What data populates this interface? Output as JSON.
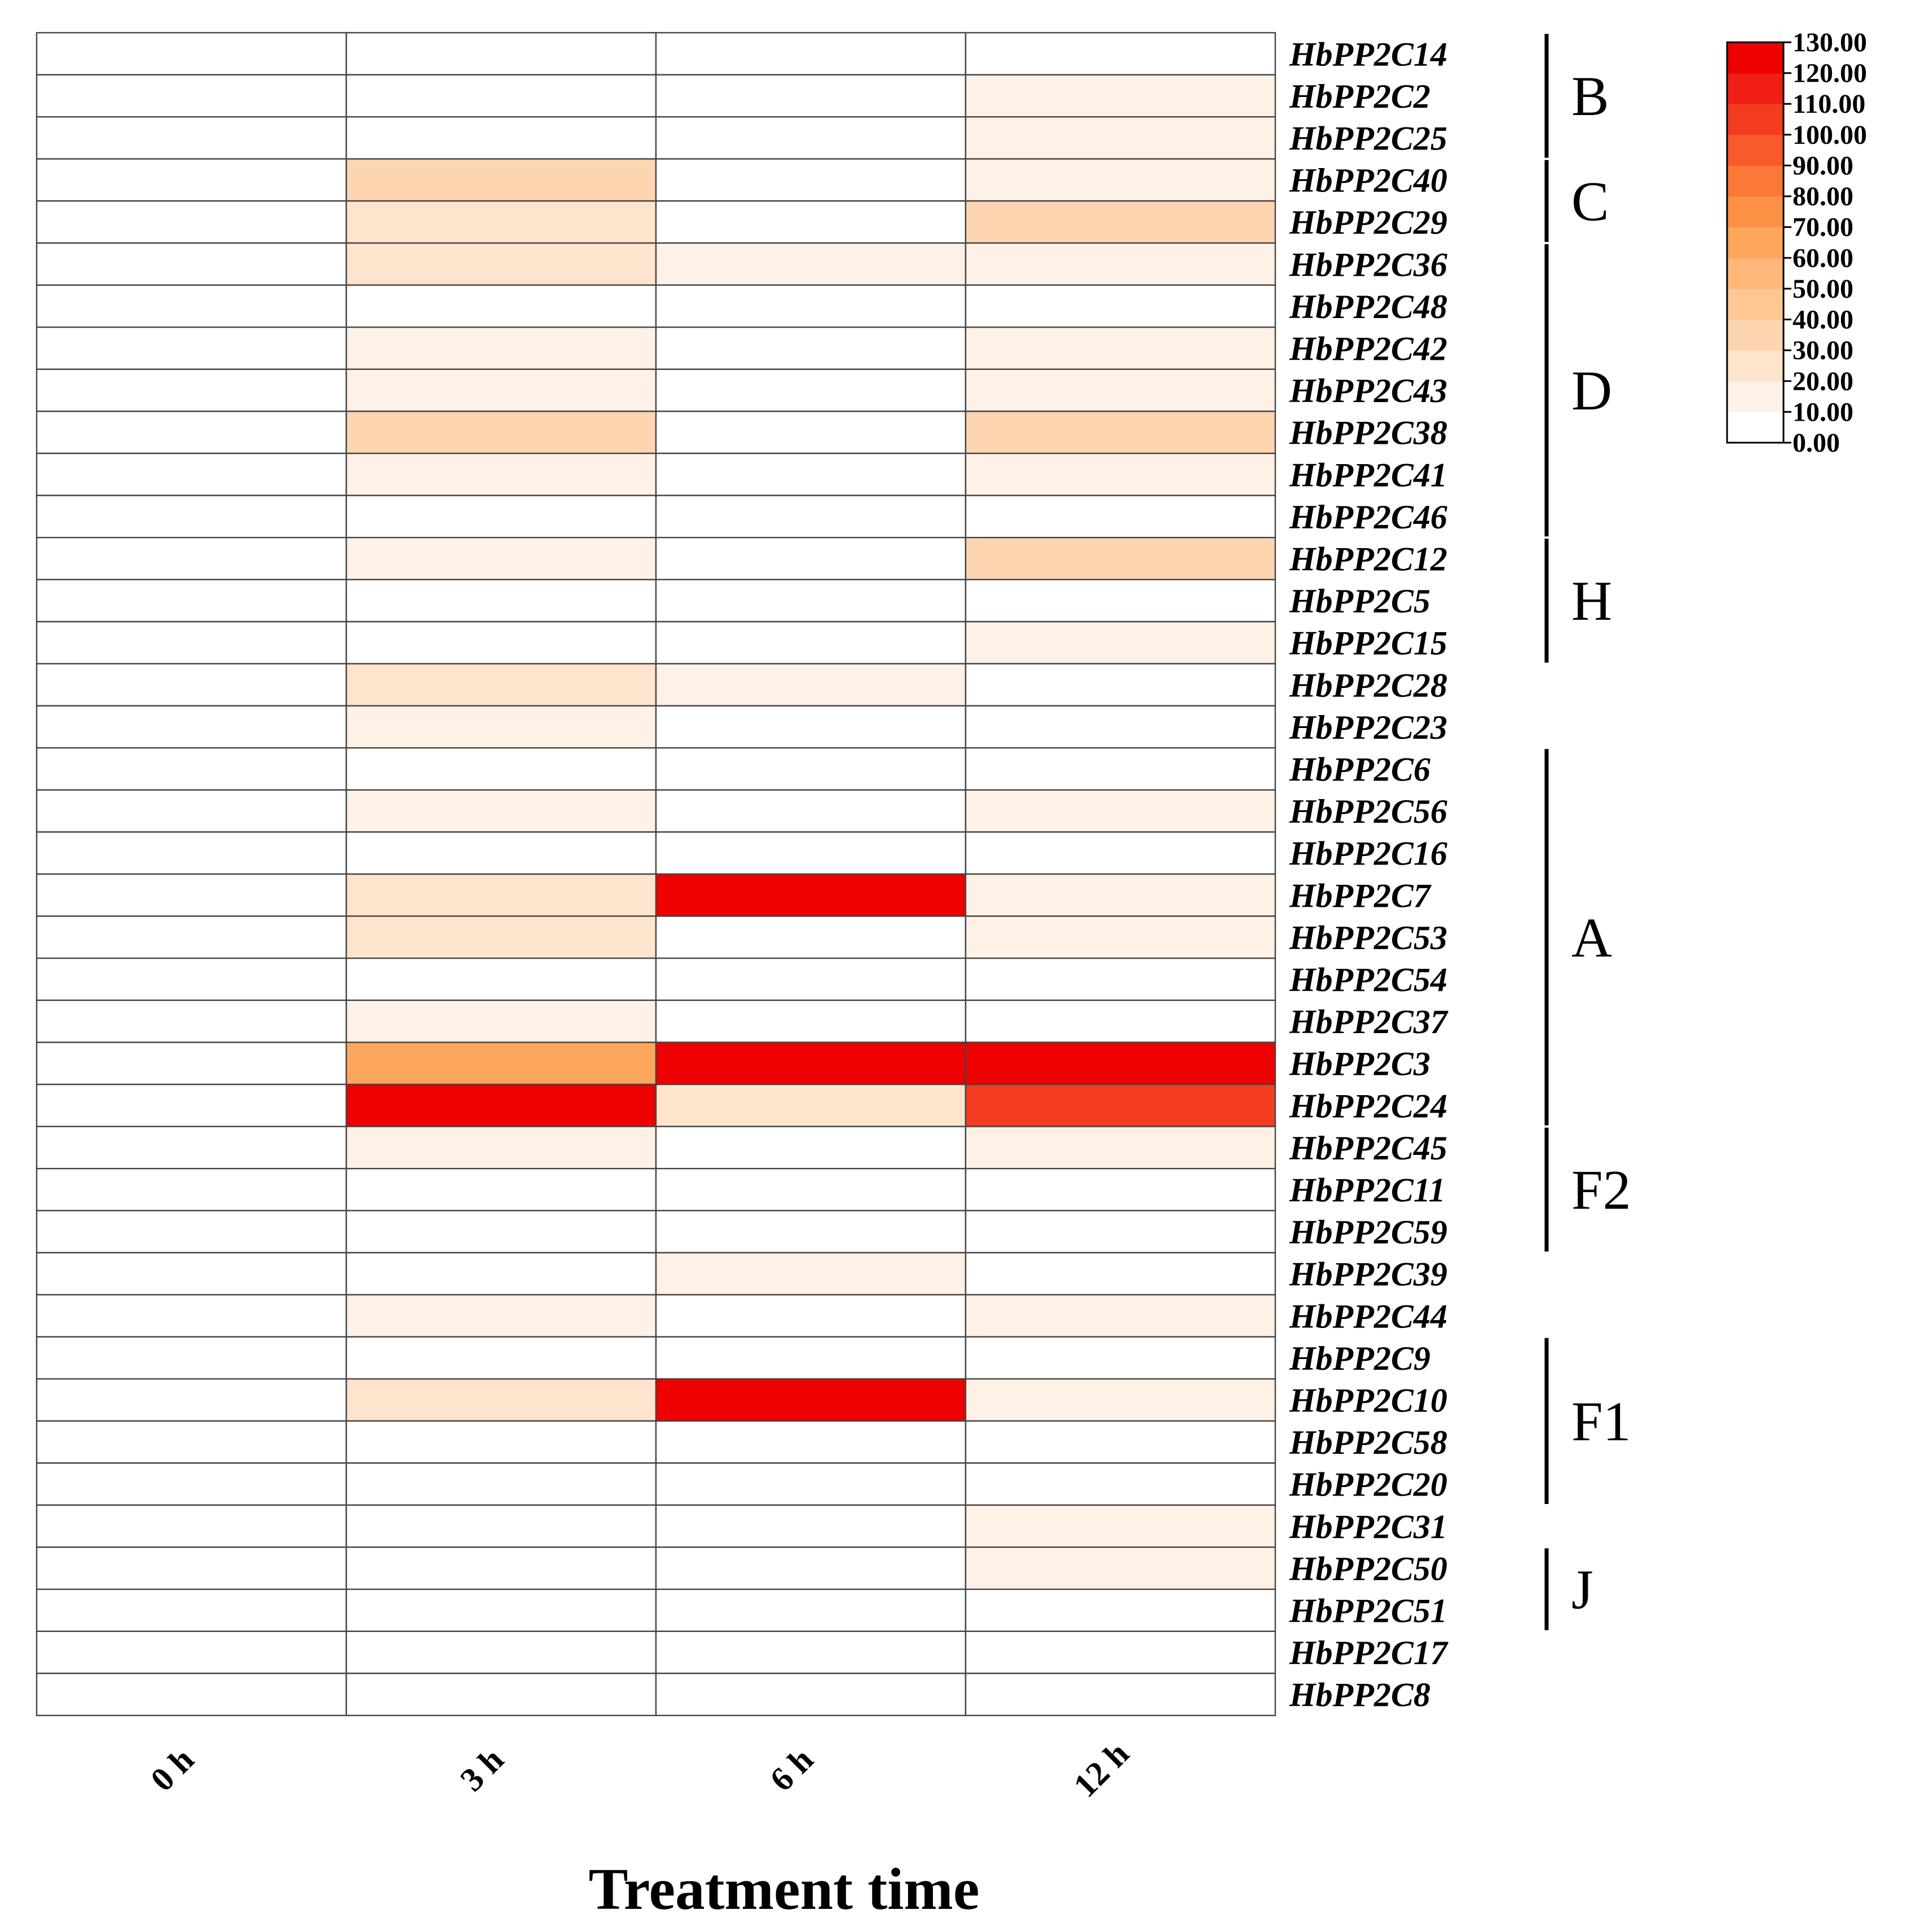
{
  "chart_data": {
    "type": "heatmap",
    "xlabel": "Treatment time",
    "x_categories": [
      "0 h",
      "3 h",
      "6 h",
      "12 h"
    ],
    "rows": [
      {
        "gene": "HbPP2C14",
        "values": [
          0,
          0,
          0,
          0
        ]
      },
      {
        "gene": "HbPP2C2",
        "values": [
          0,
          0,
          0,
          10
        ]
      },
      {
        "gene": "HbPP2C25",
        "values": [
          0,
          0,
          0,
          10
        ]
      },
      {
        "gene": "HbPP2C40",
        "values": [
          0,
          30,
          0,
          10
        ]
      },
      {
        "gene": "HbPP2C29",
        "values": [
          0,
          20,
          0,
          30
        ]
      },
      {
        "gene": "HbPP2C36",
        "values": [
          0,
          20,
          10,
          10
        ]
      },
      {
        "gene": "HbPP2C48",
        "values": [
          0,
          0,
          0,
          0
        ]
      },
      {
        "gene": "HbPP2C42",
        "values": [
          0,
          10,
          0,
          10
        ]
      },
      {
        "gene": "HbPP2C43",
        "values": [
          0,
          10,
          0,
          10
        ]
      },
      {
        "gene": "HbPP2C38",
        "values": [
          0,
          30,
          0,
          30
        ]
      },
      {
        "gene": "HbPP2C41",
        "values": [
          0,
          10,
          0,
          10
        ]
      },
      {
        "gene": "HbPP2C46",
        "values": [
          0,
          0,
          0,
          0
        ]
      },
      {
        "gene": "HbPP2C12",
        "values": [
          0,
          10,
          0,
          35
        ]
      },
      {
        "gene": "HbPP2C5",
        "values": [
          0,
          0,
          0,
          0
        ]
      },
      {
        "gene": "HbPP2C15",
        "values": [
          0,
          0,
          0,
          10
        ]
      },
      {
        "gene": "HbPP2C28",
        "values": [
          0,
          20,
          10,
          0
        ]
      },
      {
        "gene": "HbPP2C23",
        "values": [
          0,
          10,
          0,
          0
        ]
      },
      {
        "gene": "HbPP2C6",
        "values": [
          0,
          0,
          0,
          0
        ]
      },
      {
        "gene": "HbPP2C56",
        "values": [
          0,
          10,
          0,
          10
        ]
      },
      {
        "gene": "HbPP2C16",
        "values": [
          0,
          0,
          0,
          0
        ]
      },
      {
        "gene": "HbPP2C7",
        "values": [
          0,
          20,
          130,
          10
        ]
      },
      {
        "gene": "HbPP2C53",
        "values": [
          0,
          20,
          0,
          10
        ]
      },
      {
        "gene": "HbPP2C54",
        "values": [
          0,
          0,
          0,
          0
        ]
      },
      {
        "gene": "HbPP2C37",
        "values": [
          0,
          10,
          0,
          0
        ]
      },
      {
        "gene": "HbPP2C3",
        "values": [
          0,
          65,
          130,
          130
        ]
      },
      {
        "gene": "HbPP2C24",
        "values": [
          0,
          130,
          25,
          100
        ]
      },
      {
        "gene": "HbPP2C45",
        "values": [
          0,
          10,
          0,
          10
        ]
      },
      {
        "gene": "HbPP2C11",
        "values": [
          0,
          0,
          0,
          0
        ]
      },
      {
        "gene": "HbPP2C59",
        "values": [
          0,
          0,
          0,
          0
        ]
      },
      {
        "gene": "HbPP2C39",
        "values": [
          0,
          0,
          10,
          0
        ]
      },
      {
        "gene": "HbPP2C44",
        "values": [
          0,
          10,
          0,
          10
        ]
      },
      {
        "gene": "HbPP2C9",
        "values": [
          0,
          0,
          0,
          0
        ]
      },
      {
        "gene": "HbPP2C10",
        "values": [
          0,
          20,
          130,
          10
        ]
      },
      {
        "gene": "HbPP2C58",
        "values": [
          0,
          0,
          0,
          0
        ]
      },
      {
        "gene": "HbPP2C20",
        "values": [
          0,
          0,
          0,
          0
        ]
      },
      {
        "gene": "HbPP2C31",
        "values": [
          0,
          0,
          0,
          10
        ]
      },
      {
        "gene": "HbPP2C50",
        "values": [
          0,
          0,
          0,
          10
        ]
      },
      {
        "gene": "HbPP2C51",
        "values": [
          0,
          0,
          0,
          0
        ]
      },
      {
        "gene": "HbPP2C17",
        "values": [
          0,
          0,
          0,
          0
        ]
      },
      {
        "gene": "HbPP2C8",
        "values": [
          0,
          0,
          0,
          0
        ]
      }
    ],
    "groups": [
      {
        "label": "B",
        "start": 0,
        "end": 2
      },
      {
        "label": "C",
        "start": 3,
        "end": 4
      },
      {
        "label": "D",
        "start": 5,
        "end": 11
      },
      {
        "label": "H",
        "start": 12,
        "end": 14
      },
      {
        "label": "A",
        "start": 17,
        "end": 25
      },
      {
        "label": "F2",
        "start": 26,
        "end": 28
      },
      {
        "label": "F1",
        "start": 31,
        "end": 34
      },
      {
        "label": "J",
        "start": 36,
        "end": 37
      }
    ],
    "color_scale": {
      "range": [
        0,
        130
      ],
      "ticks": [
        "130.00",
        "120.00",
        "110.00",
        "100.00",
        "90.00",
        "80.00",
        "70.00",
        "60.00",
        "50.00",
        "40.00",
        "30.00",
        "20.00",
        "10.00",
        "0.00"
      ],
      "colors": [
        "#ffffff",
        "#fff1e6",
        "#fee3cd",
        "#fed5b1",
        "#fec794",
        "#feb778",
        "#fda75d",
        "#fc9145",
        "#fb7838",
        "#f85a2c",
        "#f43c20",
        "#f01e14",
        "#ee0000"
      ],
      "legend_placement": "top-right"
    }
  }
}
